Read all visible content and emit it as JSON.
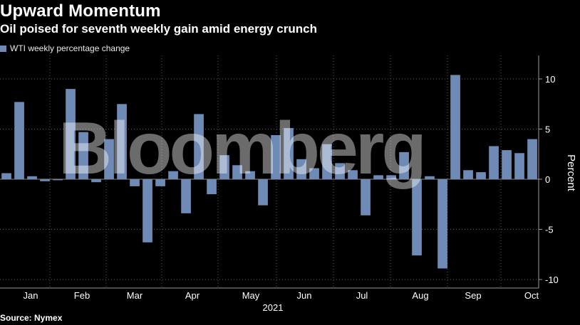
{
  "header": {
    "title": "Upward Momentum",
    "subtitle": "Oil poised for seventh weekly gain amid energy crunch"
  },
  "legend": {
    "label": "WTI weekly percentage change"
  },
  "footer": {
    "source": "Source: Nymex"
  },
  "watermark": {
    "text": "Bloomberg"
  },
  "colors": {
    "background": "#000000",
    "bar": "#6f8bb5",
    "grid": "#5a5a5a",
    "axis": "#9a9a9a",
    "text": "#ffffff"
  },
  "chart_data": {
    "type": "bar",
    "title": "Upward Momentum",
    "subtitle": "Oil poised for seventh weekly gain amid energy crunch",
    "series": [
      {
        "name": "WTI weekly percentage change",
        "values": [
          0.6,
          7.7,
          0.3,
          -0.2,
          -0.1,
          9.0,
          4.7,
          -0.3,
          4.0,
          7.5,
          -0.7,
          -6.3,
          -0.7,
          0.8,
          -3.4,
          6.5,
          -1.5,
          2.4,
          1.4,
          0.8,
          -2.6,
          4.4,
          5.1,
          2.0,
          1.1,
          3.5,
          1.6,
          0.9,
          -3.6,
          0.4,
          0.4,
          2.7,
          -7.6,
          0.3,
          -8.9,
          10.4,
          0.9,
          0.7,
          3.3,
          2.9,
          2.6,
          4.0
        ]
      }
    ],
    "x_ticks": [
      "Jan",
      "Feb",
      "Mar",
      "Apr",
      "May",
      "Jun",
      "Jul",
      "Aug",
      "Sep",
      "Oct"
    ],
    "x_year_label": "2021",
    "y_ticks": [
      10,
      5,
      0,
      -5,
      -10
    ],
    "ylabel": "Percent",
    "ylim": [
      -11,
      12
    ],
    "grid": true,
    "y_axis_position": "right",
    "legend_position": "top-left"
  }
}
